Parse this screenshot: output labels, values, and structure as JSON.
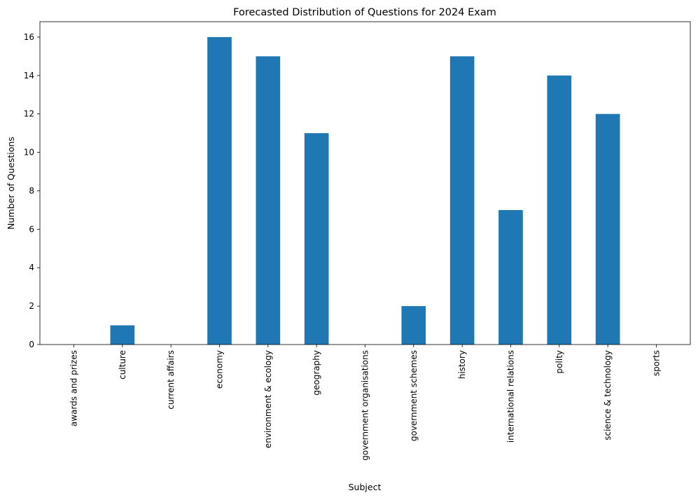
{
  "chart_data": {
    "type": "bar",
    "title": "Forecasted Distribution of Questions for 2024 Exam",
    "xlabel": "Subject",
    "ylabel": "Number of Questions",
    "categories": [
      "awards and prizes",
      "culture",
      "current affairs",
      "economy",
      "environment & ecology",
      "geography",
      "government organisations",
      "government schemes",
      "history",
      "international relations",
      "polity",
      "science & technology",
      "sports"
    ],
    "values": [
      0,
      1,
      0,
      16,
      15,
      11,
      0,
      2,
      15,
      7,
      14,
      12,
      0
    ],
    "ylim": [
      0,
      16.8
    ],
    "yticks": [
      0,
      2,
      4,
      6,
      8,
      10,
      12,
      14,
      16
    ],
    "bar_color": "#1f77b4",
    "grid": false,
    "legend": "none"
  }
}
